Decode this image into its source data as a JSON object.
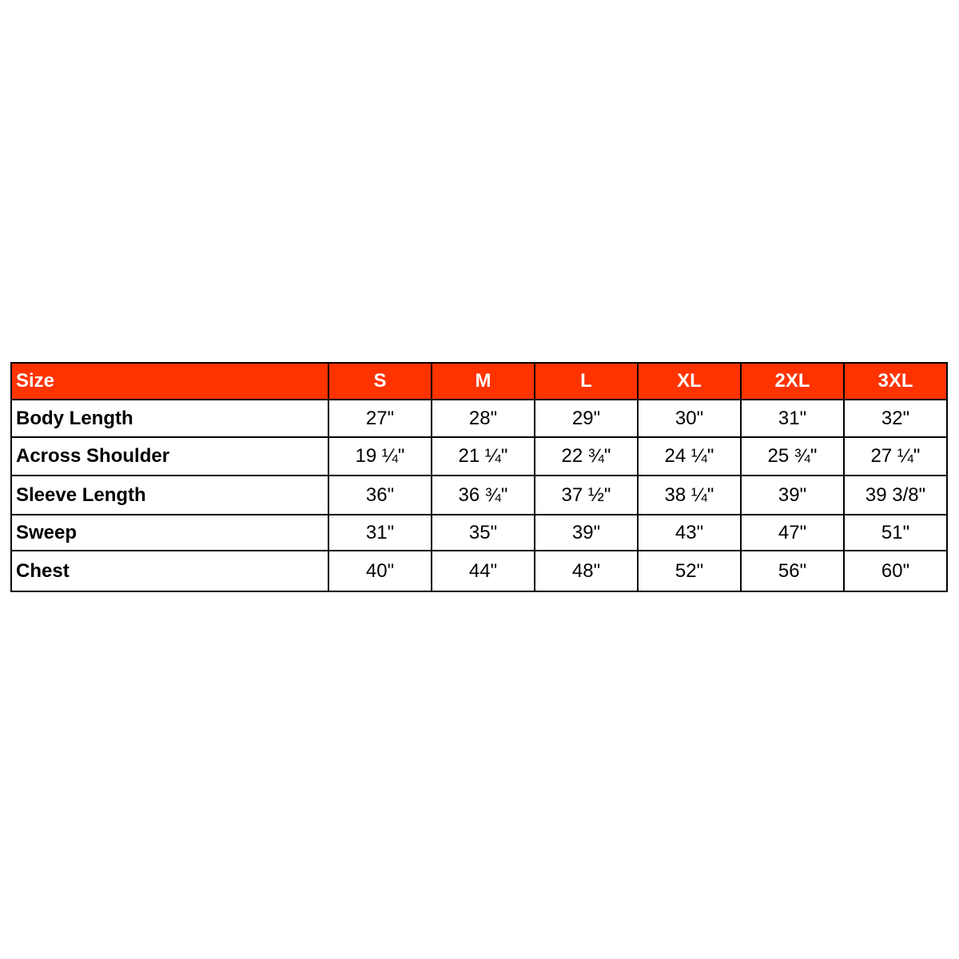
{
  "table": {
    "header_color": "#ff3300",
    "header_label": "Size",
    "sizes": [
      "S",
      "M",
      "L",
      "XL",
      "2XL",
      "3XL"
    ],
    "rows": [
      {
        "label": "Body Length",
        "values": [
          "27\"",
          "28\"",
          "29\"",
          "30\"",
          "31\"",
          "32\""
        ]
      },
      {
        "label": "Across Shoulder",
        "values": [
          "19 ¼\"",
          "21 ¼\"",
          "22 ¾\"",
          "24 ¼\"",
          "25 ¾\"",
          "27 ¼\""
        ]
      },
      {
        "label": "Sleeve Length",
        "values": [
          "36\"",
          "36 ¾\"",
          "37 ½\"",
          "38 ¼\"",
          "39\"",
          "39 3/8\""
        ]
      },
      {
        "label": "Sweep",
        "values": [
          "31\"",
          "35\"",
          "39\"",
          "43\"",
          "47\"",
          "51\""
        ]
      },
      {
        "label": "Chest",
        "values": [
          "40\"",
          "44\"",
          "48\"",
          "52\"",
          "56\"",
          "60\""
        ]
      }
    ]
  }
}
